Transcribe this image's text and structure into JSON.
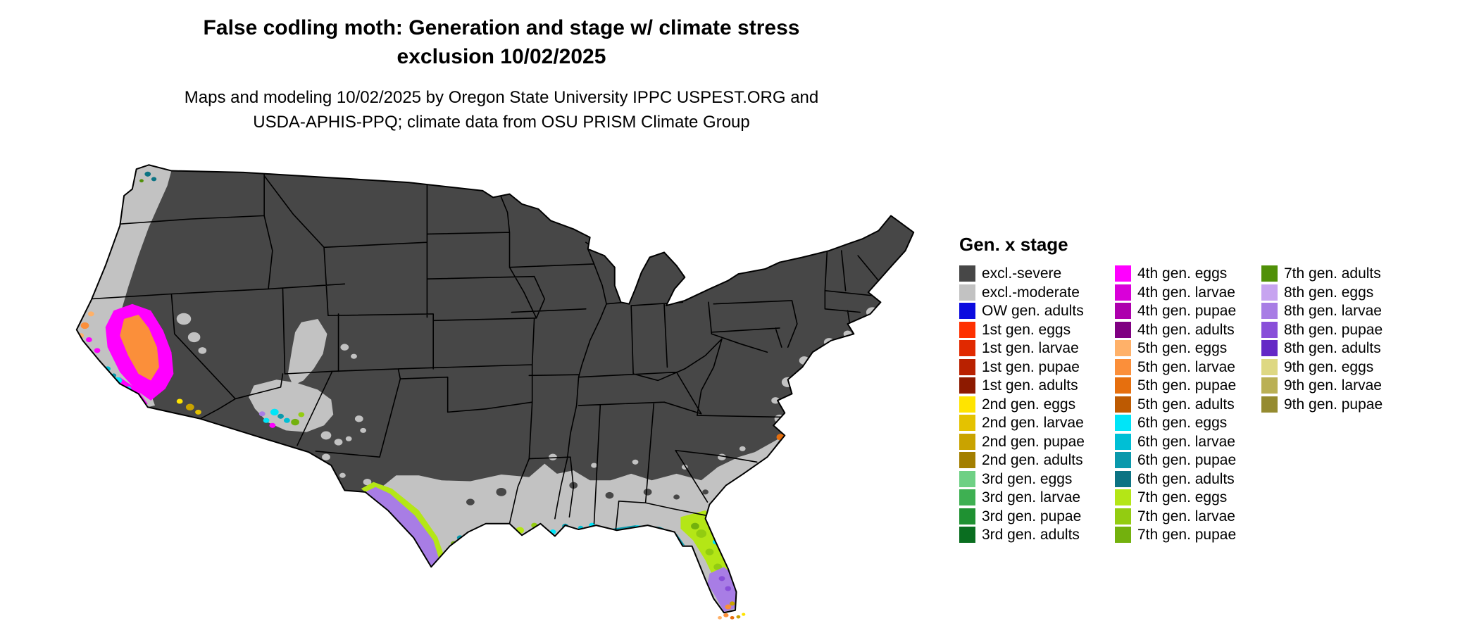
{
  "title": {
    "line1": "False codling moth: Generation and stage w/ climate stress",
    "line2": "exclusion 10/02/2025"
  },
  "subtitle": {
    "line1": "Maps and modeling 10/02/2025 by Oregon State University IPPC USPEST.ORG and",
    "line2": "USDA-APHIS-PPQ; climate data from OSU PRISM Climate Group"
  },
  "legend": {
    "title": "Gen. x stage",
    "columns": [
      [
        {
          "key": "excl_severe",
          "label": "excl.-severe",
          "color": "#474747"
        },
        {
          "key": "excl_moderate",
          "label": "excl.-moderate",
          "color": "#c2c2c2"
        },
        {
          "key": "ow_adults",
          "label": "OW gen. adults",
          "color": "#0b0bdf"
        },
        {
          "key": "g1_eggs",
          "label": "1st gen. eggs",
          "color": "#fe3000"
        },
        {
          "key": "g1_larvae",
          "label": "1st gen. larvae",
          "color": "#e12900"
        },
        {
          "key": "g1_pupae",
          "label": "1st gen. pupae",
          "color": "#b92100"
        },
        {
          "key": "g1_adults",
          "label": "1st gen. adults",
          "color": "#8d1a00"
        },
        {
          "key": "g2_eggs",
          "label": "2nd gen. eggs",
          "color": "#ffe400"
        },
        {
          "key": "g2_larvae",
          "label": "2nd gen. larvae",
          "color": "#e4c200"
        },
        {
          "key": "g2_pupae",
          "label": "2nd gen. pupae",
          "color": "#c9a300"
        },
        {
          "key": "g2_adults",
          "label": "2nd gen. adults",
          "color": "#a37f00"
        },
        {
          "key": "g3_eggs",
          "label": "3rd gen. eggs",
          "color": "#6ed084"
        },
        {
          "key": "g3_larvae",
          "label": "3rd gen. larvae",
          "color": "#3eb052"
        },
        {
          "key": "g3_pupae",
          "label": "3rd gen. pupae",
          "color": "#1f9132"
        },
        {
          "key": "g3_adults",
          "label": "3rd gen. adults",
          "color": "#0a6e20"
        }
      ],
      [
        {
          "key": "g4_eggs",
          "label": "4th gen. eggs",
          "color": "#ff00ff"
        },
        {
          "key": "g4_larvae",
          "label": "4th gen. larvae",
          "color": "#d900d9"
        },
        {
          "key": "g4_pupae",
          "label": "4th gen. pupae",
          "color": "#ad00ad"
        },
        {
          "key": "g4_adults",
          "label": "4th gen. adults",
          "color": "#7f0082"
        },
        {
          "key": "g5_eggs",
          "label": "5th gen. eggs",
          "color": "#ffb169"
        },
        {
          "key": "g5_larvae",
          "label": "5th gen. larvae",
          "color": "#fb8f3a"
        },
        {
          "key": "g5_pupae",
          "label": "5th gen. pupae",
          "color": "#e66f0e"
        },
        {
          "key": "g5_adults",
          "label": "5th gen. adults",
          "color": "#bd5a02"
        },
        {
          "key": "g6_eggs",
          "label": "6th gen. eggs",
          "color": "#00e5f8"
        },
        {
          "key": "g6_larvae",
          "label": "6th gen. larvae",
          "color": "#00bfd5"
        },
        {
          "key": "g6_pupae",
          "label": "6th gen. pupae",
          "color": "#0a99ac"
        },
        {
          "key": "g6_adults",
          "label": "6th gen. adults",
          "color": "#0c7383"
        },
        {
          "key": "g7_eggs",
          "label": "7th gen. eggs",
          "color": "#b4e616"
        },
        {
          "key": "g7_larvae",
          "label": "7th gen. larvae",
          "color": "#93cc11"
        },
        {
          "key": "g7_pupae",
          "label": "7th gen. pupae",
          "color": "#73b10d"
        }
      ],
      [
        {
          "key": "g7_adults",
          "label": "7th gen. adults",
          "color": "#509008"
        },
        {
          "key": "g8_eggs",
          "label": "8th gen. eggs",
          "color": "#c7a4f0"
        },
        {
          "key": "g8_larvae",
          "label": "8th gen. larvae",
          "color": "#a87de5"
        },
        {
          "key": "g8_pupae",
          "label": "8th gen. pupae",
          "color": "#894fd9"
        },
        {
          "key": "g8_adults",
          "label": "8th gen. adults",
          "color": "#6428c6"
        },
        {
          "key": "g9_eggs",
          "label": "9th gen. eggs",
          "color": "#ded882"
        },
        {
          "key": "g9_larvae",
          "label": "9th gen. larvae",
          "color": "#bab054"
        },
        {
          "key": "g9_pupae",
          "label": "9th gen. pupae",
          "color": "#958b30"
        }
      ]
    ]
  }
}
